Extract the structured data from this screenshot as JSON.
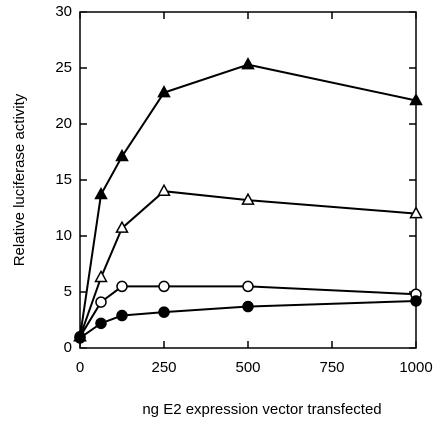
{
  "chart_data": {
    "type": "line",
    "x_label": "ng E2 expression vector transfected",
    "y_label": "Relative luciferase activity",
    "x": [
      0,
      62.5,
      125,
      250,
      500,
      1000
    ],
    "series": [
      {
        "color": "#000000",
        "marker": "triangle",
        "filled": true,
        "values": [
          1,
          13.7,
          17.1,
          22.8,
          25.3,
          22.1
        ]
      },
      {
        "color": "#000000",
        "marker": "triangle",
        "filled": false,
        "values": [
          1,
          6.3,
          10.7,
          14.0,
          13.2,
          12.0
        ]
      },
      {
        "color": "#000000",
        "marker": "circle",
        "filled": false,
        "values": [
          1,
          4.1,
          5.5,
          5.5,
          5.5,
          4.8
        ]
      },
      {
        "color": "#000000",
        "marker": "circle",
        "filled": true,
        "values": [
          0.9,
          2.2,
          2.9,
          3.2,
          3.7,
          4.2
        ]
      }
    ],
    "xlim": [
      0,
      1000
    ],
    "xticks": [
      0,
      250,
      500,
      750,
      1000
    ],
    "ylim": [
      0,
      30
    ],
    "yticks": [
      0,
      5,
      10,
      15,
      20,
      25,
      30
    ],
    "grid": false
  }
}
